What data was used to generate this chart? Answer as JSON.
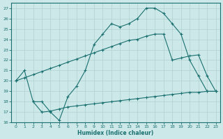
{
  "xlabel": "Humidex (Indice chaleur)",
  "bg_color": "#cde8e8",
  "line_color": "#1a7070",
  "grid_color": "#b0d0d0",
  "xlim": [
    -0.5,
    23.5
  ],
  "ylim": [
    16,
    27.5
  ],
  "xticks": [
    0,
    1,
    2,
    3,
    4,
    5,
    6,
    7,
    8,
    9,
    10,
    11,
    12,
    13,
    14,
    15,
    16,
    17,
    18,
    19,
    20,
    21,
    22,
    23
  ],
  "yticks": [
    16,
    17,
    18,
    19,
    20,
    21,
    22,
    23,
    24,
    25,
    26,
    27
  ],
  "line1_x": [
    0,
    1,
    2,
    3,
    4,
    5,
    6,
    7,
    8,
    9,
    10,
    11,
    12,
    13,
    14,
    15,
    16,
    17,
    18,
    19,
    20,
    21,
    22,
    23
  ],
  "line1_y": [
    20.0,
    21.0,
    18.0,
    18.0,
    17.0,
    16.2,
    18.5,
    19.5,
    21.0,
    23.5,
    24.5,
    25.5,
    25.2,
    25.5,
    26.0,
    27.0,
    27.0,
    26.5,
    25.5,
    24.5,
    22.0,
    20.5,
    19.0,
    19.0
  ],
  "line2_x": [
    0,
    1,
    2,
    3,
    4,
    5,
    6,
    7,
    8,
    9,
    10,
    11,
    12,
    13,
    14,
    15,
    16,
    17,
    18,
    19,
    20,
    21,
    22,
    23
  ],
  "line2_y": [
    20.0,
    20.3,
    20.6,
    20.9,
    21.2,
    21.5,
    21.8,
    22.1,
    22.4,
    22.7,
    23.0,
    23.3,
    23.6,
    23.9,
    24.0,
    24.3,
    24.5,
    24.5,
    22.0,
    22.2,
    22.4,
    22.5,
    20.5,
    19.0
  ],
  "line3_x": [
    2,
    3,
    4,
    5,
    6,
    7,
    8,
    9,
    10,
    11,
    12,
    13,
    14,
    15,
    16,
    17,
    18,
    19,
    20,
    21,
    22,
    23
  ],
  "line3_y": [
    18.0,
    17.0,
    17.1,
    17.3,
    17.5,
    17.6,
    17.7,
    17.8,
    17.9,
    18.0,
    18.1,
    18.2,
    18.3,
    18.4,
    18.5,
    18.6,
    18.7,
    18.8,
    18.9,
    18.9,
    19.0,
    19.0
  ]
}
